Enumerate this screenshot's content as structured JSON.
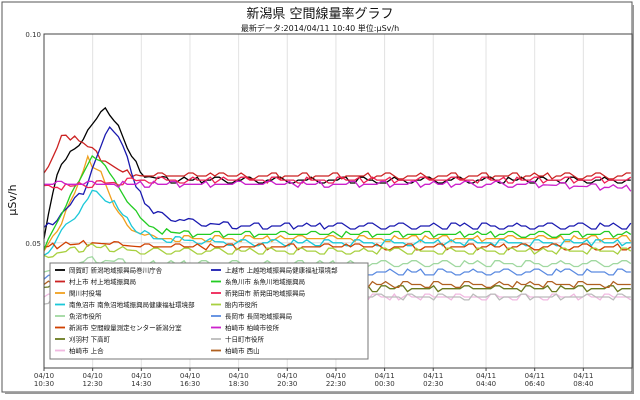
{
  "chart_data": {
    "type": "line",
    "title": "新潟県 空間線量率グラフ",
    "subtitle": "最新データ:2014/04/11 10:40 単位:μSv/h",
    "ylabel": "μSv/h",
    "ylim": [
      0.02,
      0.1
    ],
    "yticks": [
      "0.10",
      "0.05"
    ],
    "ytick_values": [
      0.1,
      0.05
    ],
    "grid": true,
    "legend_position": "bottom-left",
    "x_ticks": [
      {
        "date": "04/10",
        "time": "10:30",
        "h": 0
      },
      {
        "date": "04/10",
        "time": "12:30",
        "h": 2
      },
      {
        "date": "04/10",
        "time": "14:30",
        "h": 4
      },
      {
        "date": "04/10",
        "time": "16:30",
        "h": 6
      },
      {
        "date": "04/10",
        "time": "18:30",
        "h": 8
      },
      {
        "date": "04/10",
        "time": "20:30",
        "h": 10
      },
      {
        "date": "04/10",
        "time": "22:30",
        "h": 12
      },
      {
        "date": "04/11",
        "time": "00:30",
        "h": 14
      },
      {
        "date": "04/11",
        "time": "02:30",
        "h": 16
      },
      {
        "date": "04/11",
        "time": "04:40",
        "h": 18.17
      },
      {
        "date": "04/11",
        "time": "06:40",
        "h": 20.17
      },
      {
        "date": "04/11",
        "time": "08:40",
        "h": 22.17
      }
    ],
    "xmax_h": 24.17,
    "series": [
      {
        "name": "岡賀町 新潟地域振興局巻川庁舎",
        "color": "#000000",
        "points": [
          [
            0,
            0.051
          ],
          [
            0.6,
            0.068
          ],
          [
            1.2,
            0.072
          ],
          [
            1.8,
            0.077
          ],
          [
            2.2,
            0.08
          ],
          [
            2.6,
            0.082
          ],
          [
            3.0,
            0.079
          ],
          [
            3.6,
            0.07
          ],
          [
            4.2,
            0.066
          ],
          [
            5,
            0.065
          ],
          [
            8,
            0.065
          ],
          [
            12,
            0.065
          ],
          [
            16,
            0.065
          ],
          [
            20,
            0.065
          ],
          [
            24.17,
            0.065
          ]
        ]
      },
      {
        "name": "村上市 村上地域振興局",
        "color": "#cc2222",
        "points": [
          [
            0,
            0.066
          ],
          [
            0.8,
            0.076
          ],
          [
            1.6,
            0.074
          ],
          [
            2.4,
            0.07
          ],
          [
            3.2,
            0.067
          ],
          [
            4,
            0.066
          ],
          [
            8,
            0.066
          ],
          [
            12,
            0.066
          ],
          [
            16,
            0.066
          ],
          [
            20,
            0.066
          ],
          [
            24.17,
            0.066
          ]
        ]
      },
      {
        "name": "関川村役場",
        "color": "#f0a020",
        "points": [
          [
            0,
            0.048
          ],
          [
            1.0,
            0.058
          ],
          [
            1.8,
            0.07
          ],
          [
            2.4,
            0.066
          ],
          [
            3.0,
            0.057
          ],
          [
            3.6,
            0.053
          ],
          [
            4.5,
            0.051
          ],
          [
            8,
            0.051
          ],
          [
            12,
            0.051
          ],
          [
            16,
            0.051
          ],
          [
            20,
            0.051
          ],
          [
            24.17,
            0.051
          ]
        ]
      },
      {
        "name": "南魚沼市 南魚沼地域振興局健康福祉環境部",
        "color": "#1bc8d8",
        "points": [
          [
            0,
            0.047
          ],
          [
            1.2,
            0.056
          ],
          [
            2.0,
            0.062
          ],
          [
            2.8,
            0.06
          ],
          [
            3.6,
            0.054
          ],
          [
            4.5,
            0.051
          ],
          [
            8,
            0.05
          ],
          [
            12,
            0.05
          ],
          [
            16,
            0.05
          ],
          [
            20,
            0.05
          ],
          [
            24.17,
            0.05
          ]
        ]
      },
      {
        "name": "魚沼市役所",
        "color": "#a0d8a0",
        "points": [
          [
            0,
            0.043
          ],
          [
            2,
            0.046
          ],
          [
            4,
            0.045
          ],
          [
            8,
            0.045
          ],
          [
            12,
            0.045
          ],
          [
            16,
            0.045
          ],
          [
            20,
            0.045
          ],
          [
            24.17,
            0.045
          ]
        ]
      },
      {
        "name": "新潟市 空間線量測定センター新潟分室",
        "color": "#d04000",
        "points": [
          [
            0,
            0.049
          ],
          [
            2,
            0.05
          ],
          [
            4,
            0.049
          ],
          [
            8,
            0.049
          ],
          [
            12,
            0.049
          ],
          [
            16,
            0.049
          ],
          [
            20,
            0.049
          ],
          [
            24.17,
            0.049
          ]
        ]
      },
      {
        "name": "刈羽村 下高町",
        "color": "#6a7a20",
        "points": [
          [
            0,
            0.04
          ],
          [
            2,
            0.041
          ],
          [
            4,
            0.039
          ],
          [
            8,
            0.039
          ],
          [
            12,
            0.039
          ],
          [
            16,
            0.039
          ],
          [
            20,
            0.039
          ],
          [
            24.17,
            0.039
          ]
        ]
      },
      {
        "name": "柏崎市 上合",
        "color": "#f0b8e0",
        "points": [
          [
            0,
            0.037
          ],
          [
            2,
            0.037
          ],
          [
            4,
            0.037
          ],
          [
            8,
            0.037
          ],
          [
            12,
            0.037
          ],
          [
            16,
            0.037
          ],
          [
            20,
            0.037
          ],
          [
            24.17,
            0.037
          ]
        ]
      },
      {
        "name": "上越市 上越地域振興局健康福祉環境部",
        "color": "#1a1ab0",
        "points": [
          [
            0,
            0.053
          ],
          [
            1.6,
            0.062
          ],
          [
            2.4,
            0.074
          ],
          [
            2.8,
            0.078
          ],
          [
            3.2,
            0.074
          ],
          [
            3.8,
            0.063
          ],
          [
            4.5,
            0.057
          ],
          [
            6,
            0.055
          ],
          [
            8,
            0.054
          ],
          [
            12,
            0.054
          ],
          [
            16,
            0.054
          ],
          [
            20,
            0.054
          ],
          [
            24.17,
            0.054
          ]
        ]
      },
      {
        "name": "糸魚川市 糸魚川地域振興局",
        "color": "#22cc22",
        "points": [
          [
            0,
            0.049
          ],
          [
            1.2,
            0.062
          ],
          [
            2.0,
            0.071
          ],
          [
            2.8,
            0.066
          ],
          [
            3.6,
            0.058
          ],
          [
            4.5,
            0.053
          ],
          [
            6,
            0.052
          ],
          [
            8,
            0.052
          ],
          [
            12,
            0.052
          ],
          [
            16,
            0.052
          ],
          [
            20,
            0.052
          ],
          [
            24.17,
            0.052
          ]
        ]
      },
      {
        "name": "新発田市 新発田地域振興局",
        "color": "#ee2255",
        "points": [
          [
            0,
            0.063
          ],
          [
            2,
            0.064
          ],
          [
            4,
            0.065
          ],
          [
            8,
            0.065
          ],
          [
            12,
            0.065
          ],
          [
            16,
            0.065
          ],
          [
            20,
            0.065
          ],
          [
            24.17,
            0.065
          ]
        ]
      },
      {
        "name": "胎内市役所",
        "color": "#a8d040",
        "points": [
          [
            0,
            0.047
          ],
          [
            2,
            0.049
          ],
          [
            4,
            0.048
          ],
          [
            8,
            0.048
          ],
          [
            12,
            0.048
          ],
          [
            16,
            0.048
          ],
          [
            20,
            0.048
          ],
          [
            24.17,
            0.048
          ]
        ]
      },
      {
        "name": "長岡市 長岡地域振興局",
        "color": "#5a8ae0",
        "points": [
          [
            0,
            0.042
          ],
          [
            2,
            0.044
          ],
          [
            4,
            0.043
          ],
          [
            8,
            0.043
          ],
          [
            12,
            0.043
          ],
          [
            16,
            0.043
          ],
          [
            20,
            0.043
          ],
          [
            24.17,
            0.043
          ]
        ]
      },
      {
        "name": "柏崎市 柏崎市役所",
        "color": "#cc22cc",
        "points": [
          [
            0,
            0.064
          ],
          [
            2,
            0.064
          ],
          [
            4,
            0.064
          ],
          [
            8,
            0.064
          ],
          [
            12,
            0.064
          ],
          [
            16,
            0.064
          ],
          [
            20,
            0.064
          ],
          [
            24.17,
            0.063
          ]
        ]
      },
      {
        "name": "十日町市役所",
        "color": "#bbbbbb",
        "points": [
          [
            0,
            0.036
          ],
          [
            2,
            0.038
          ],
          [
            4,
            0.037
          ],
          [
            8,
            0.037
          ],
          [
            12,
            0.037
          ],
          [
            16,
            0.037
          ],
          [
            20,
            0.037
          ],
          [
            24.17,
            0.037
          ]
        ]
      },
      {
        "name": "柏崎市 西山",
        "color": "#b06020",
        "points": [
          [
            0,
            0.04
          ],
          [
            2,
            0.041
          ],
          [
            4,
            0.04
          ],
          [
            8,
            0.04
          ],
          [
            12,
            0.04
          ],
          [
            16,
            0.04
          ],
          [
            20,
            0.04
          ],
          [
            24.17,
            0.04
          ]
        ]
      }
    ]
  }
}
